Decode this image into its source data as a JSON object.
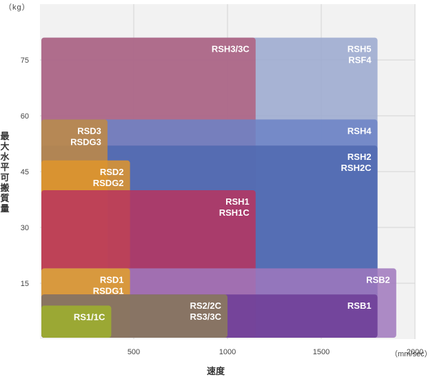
{
  "chart_data": {
    "type": "area",
    "xlabel": "速度",
    "ylabel": "最大水平可搬質量",
    "x_unit": "（mm/sec）",
    "y_unit": "（kg）",
    "xlim": [
      0,
      2000
    ],
    "ylim": [
      0,
      90
    ],
    "x_ticks": [
      "500",
      "1000",
      "1500",
      "2000"
    ],
    "y_ticks": [
      "15",
      "30",
      "45",
      "60",
      "75"
    ],
    "grid": true,
    "regions": [
      {
        "label": [
          "RSH5",
          "RSF4"
        ],
        "x": [
          0,
          1800
        ],
        "y": [
          0,
          81
        ],
        "color": "#9aa8cf",
        "align": "right"
      },
      {
        "label": [
          "RSH3/3C"
        ],
        "x": [
          0,
          1150
        ],
        "y": [
          0,
          81
        ],
        "color": "#b0607f",
        "align": "right"
      },
      {
        "label": [
          "RSH4"
        ],
        "x": [
          0,
          1800
        ],
        "y": [
          0,
          59
        ],
        "color": "#6c83c6",
        "align": "right"
      },
      {
        "label": [
          "RSH2",
          "RSH2C"
        ],
        "x": [
          0,
          1800
        ],
        "y": [
          0,
          52
        ],
        "color": "#5068b0",
        "align": "right"
      },
      {
        "label": [
          "RSD3",
          "RSDG3"
        ],
        "x": [
          0,
          360
        ],
        "y": [
          0,
          59
        ],
        "color": "#c28a43",
        "align": "right"
      },
      {
        "label": [
          "RSD2",
          "RSDG2"
        ],
        "x": [
          0,
          480
        ],
        "y": [
          0,
          48
        ],
        "color": "#e0952b",
        "align": "right"
      },
      {
        "label": [
          "RSH1",
          "RSH1C"
        ],
        "x": [
          0,
          1150
        ],
        "y": [
          0,
          40
        ],
        "color": "#b8345e",
        "align": "right"
      },
      {
        "label": [
          "RSB2"
        ],
        "x": [
          0,
          1900
        ],
        "y": [
          0,
          19
        ],
        "color": "#a078bd",
        "align": "right"
      },
      {
        "label": [
          "RSD1",
          "RSDG1"
        ],
        "x": [
          0,
          480
        ],
        "y": [
          0,
          19
        ],
        "color": "#e2a02a",
        "align": "right"
      },
      {
        "label": [
          "RSB1"
        ],
        "x": [
          0,
          1800
        ],
        "y": [
          0,
          12
        ],
        "color": "#6d3d96",
        "align": "right"
      },
      {
        "label": [
          "RS2/2C",
          "RS3/3C"
        ],
        "x": [
          0,
          1000
        ],
        "y": [
          0,
          12
        ],
        "color": "#8c7d5a",
        "align": "right"
      },
      {
        "label": [
          "RS1/1C"
        ],
        "x": [
          0,
          380
        ],
        "y": [
          0,
          9
        ],
        "color": "#9db12d",
        "align": "right"
      }
    ]
  }
}
